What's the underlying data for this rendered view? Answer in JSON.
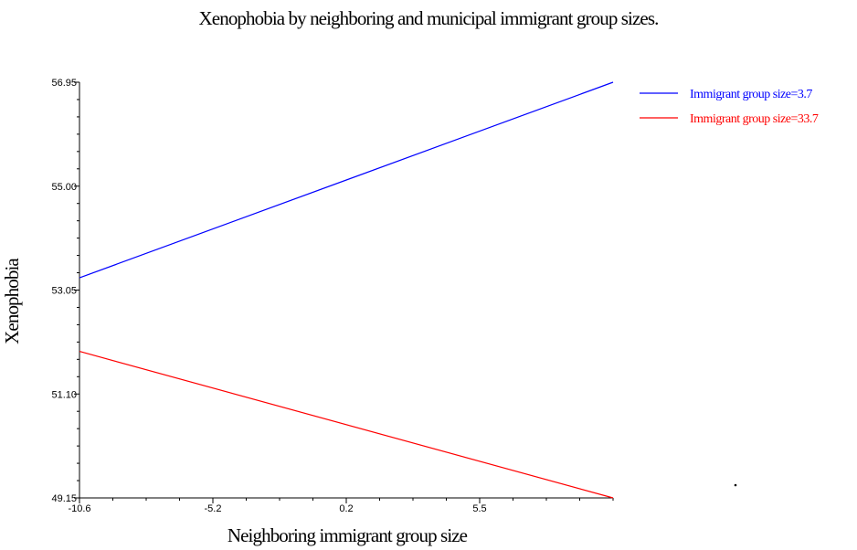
{
  "chart_data": {
    "type": "line",
    "title": "Xenophobia by neighboring and municipal immigrant group sizes.",
    "xlabel": "Neighboring immigrant group size",
    "ylabel": "Xenophobia",
    "xlim": [
      -10.6,
      10.8
    ],
    "ylim": [
      49.15,
      56.95
    ],
    "x_ticks": [
      "-10.6",
      "-5.2",
      "0.2",
      "5.5"
    ],
    "y_ticks": [
      "49.15",
      "51.10",
      "53.05",
      "55.00",
      "56.95"
    ],
    "legend_position": "top-right",
    "series": [
      {
        "name": "Immigrant group size=3.7",
        "color": "#0000ff",
        "x": [
          -10.6,
          10.8
        ],
        "y": [
          53.28,
          56.95
        ]
      },
      {
        "name": "Immigrant group size=33.7",
        "color": "#ff0000",
        "x": [
          -10.6,
          10.8
        ],
        "y": [
          51.9,
          49.15
        ]
      }
    ]
  }
}
